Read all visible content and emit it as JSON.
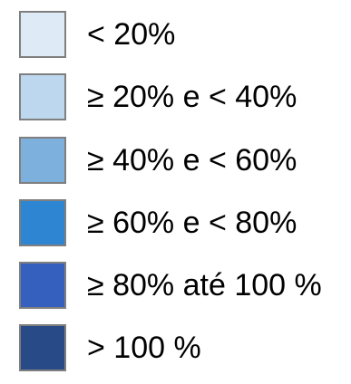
{
  "legend": {
    "items": [
      {
        "label": "< 20%",
        "color": "#deebf7"
      },
      {
        "label": "≥ 20% e < 40%",
        "color": "#bdd7ee"
      },
      {
        "label": "≥ 40% e < 60%",
        "color": "#7eb0de"
      },
      {
        "label": "≥ 60% e < 80%",
        "color": "#2e85d1"
      },
      {
        "label": "≥ 80% até 100 %",
        "color": "#3560bd"
      },
      {
        "label": "> 100 %",
        "color": "#284b87"
      }
    ]
  }
}
